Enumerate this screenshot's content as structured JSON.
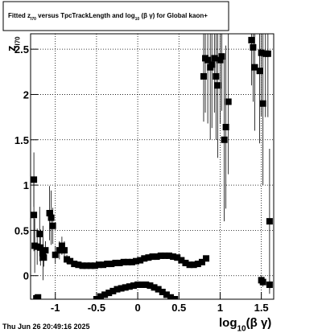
{
  "chart_data": {
    "type": "scatter",
    "title": [
      "Fitted  z",
      "I70",
      " versus TpcTrackLength and log",
      "10",
      " (β γ) for Global kaon+"
    ],
    "x_label": [
      "log",
      "10",
      "(β γ)"
    ],
    "y_label": [
      "z",
      "I70"
    ],
    "timestamp": "Thu Jun 26 20:49:16 2025",
    "color": "#000000",
    "grid": true,
    "xlim": [
      -1.3,
      1.65
    ],
    "ylim": [
      -0.26,
      2.67
    ],
    "xticks": [
      -1,
      -0.5,
      0,
      0.5,
      1,
      1.5
    ],
    "yticks": [
      0,
      0.5,
      1,
      1.5,
      2,
      2.5
    ],
    "x": [
      -1.26,
      -1.26,
      -1.25,
      -1.22,
      -1.19,
      -1.18,
      -1.15,
      -1.14,
      -1.12,
      -1.07,
      -1.05,
      -1.03,
      -1.0,
      -0.95,
      -0.92,
      -0.89,
      -0.86,
      -1.23,
      -1.21,
      -0.82,
      -0.77,
      -0.72,
      -0.67,
      -0.62,
      -0.57,
      -0.52,
      -0.47,
      -0.42,
      -0.37,
      -0.32,
      -0.27,
      -0.22,
      -0.17,
      -0.12,
      -0.07,
      -0.02,
      0.03,
      0.08,
      0.13,
      0.18,
      0.23,
      0.28,
      0.33,
      0.38,
      0.43,
      0.48,
      0.53,
      0.58,
      0.63,
      0.68,
      0.73,
      0.78,
      0.83,
      -0.5,
      -0.45,
      -0.4,
      -0.35,
      -0.3,
      -0.25,
      -0.2,
      -0.15,
      -0.1,
      -0.05,
      0.0,
      0.05,
      0.1,
      0.15,
      0.2,
      0.25,
      0.3,
      0.35,
      0.4,
      0.45,
      0.8,
      0.82,
      0.85,
      0.88,
      0.9,
      0.93,
      0.95,
      0.97,
      1.0,
      1.02,
      1.05,
      1.07,
      1.1,
      1.38,
      1.4,
      1.42,
      1.48,
      1.5,
      1.52,
      1.55,
      1.58,
      1.6,
      1.5,
      1.52,
      1.6
    ],
    "values": [
      1.06,
      0.67,
      0.33,
      0.32,
      0.46,
      0.31,
      0.25,
      0.2,
      0.28,
      0.69,
      0.64,
      0.55,
      0.23,
      0.28,
      0.33,
      0.28,
      0.18,
      -0.25,
      -0.24,
      0.16,
      0.13,
      0.12,
      0.11,
      0.11,
      0.11,
      0.11,
      0.12,
      0.12,
      0.13,
      0.13,
      0.14,
      0.14,
      0.15,
      0.15,
      0.15,
      0.16,
      0.17,
      0.19,
      0.2,
      0.21,
      0.21,
      0.22,
      0.22,
      0.22,
      0.21,
      0.2,
      0.17,
      0.14,
      0.12,
      0.12,
      0.13,
      0.15,
      0.19,
      -0.26,
      -0.23,
      -0.21,
      -0.19,
      -0.17,
      -0.15,
      -0.14,
      -0.13,
      -0.12,
      -0.11,
      -0.1,
      -0.1,
      -0.1,
      -0.11,
      -0.13,
      -0.15,
      -0.18,
      -0.21,
      -0.24,
      -0.26,
      2.2,
      2.4,
      2.38,
      2.3,
      2.33,
      2.4,
      2.2,
      2.1,
      2.38,
      2.42,
      1.5,
      1.64,
      1.92,
      2.6,
      2.52,
      2.3,
      2.26,
      2.46,
      1.9,
      2.45,
      2.45,
      0.6,
      -0.05,
      -0.07,
      -0.1
    ],
    "errors": [
      0.3,
      0.4,
      0.3,
      0.2,
      0.3,
      0.2,
      0.3,
      0.1,
      0.1,
      0.3,
      0.3,
      0.2,
      0.1,
      0.1,
      0.1,
      0.1,
      0.05,
      0.02,
      0.02,
      0.01,
      0.01,
      0.01,
      0.01,
      0.01,
      0.01,
      0.01,
      0.01,
      0.01,
      0.01,
      0.01,
      0.01,
      0.01,
      0.01,
      0.01,
      0.01,
      0.01,
      0.01,
      0.01,
      0.01,
      0.01,
      0.01,
      0.01,
      0.01,
      0.01,
      0.01,
      0.01,
      0.01,
      0.01,
      0.01,
      0.01,
      0.01,
      0.01,
      0.01,
      0.01,
      0.01,
      0.01,
      0.01,
      0.01,
      0.01,
      0.01,
      0.01,
      0.01,
      0.01,
      0.01,
      0.01,
      0.01,
      0.01,
      0.01,
      0.01,
      0.01,
      0.01,
      0.01,
      0.01,
      0.5,
      0.6,
      0.7,
      0.8,
      0.7,
      0.6,
      0.7,
      0.8,
      0.7,
      0.6,
      0.9,
      0.9,
      0.8,
      0.5,
      0.6,
      0.7,
      0.8,
      0.7,
      0.9,
      0.7,
      0.7,
      0.8,
      0.05,
      0.05,
      0.05
    ]
  }
}
